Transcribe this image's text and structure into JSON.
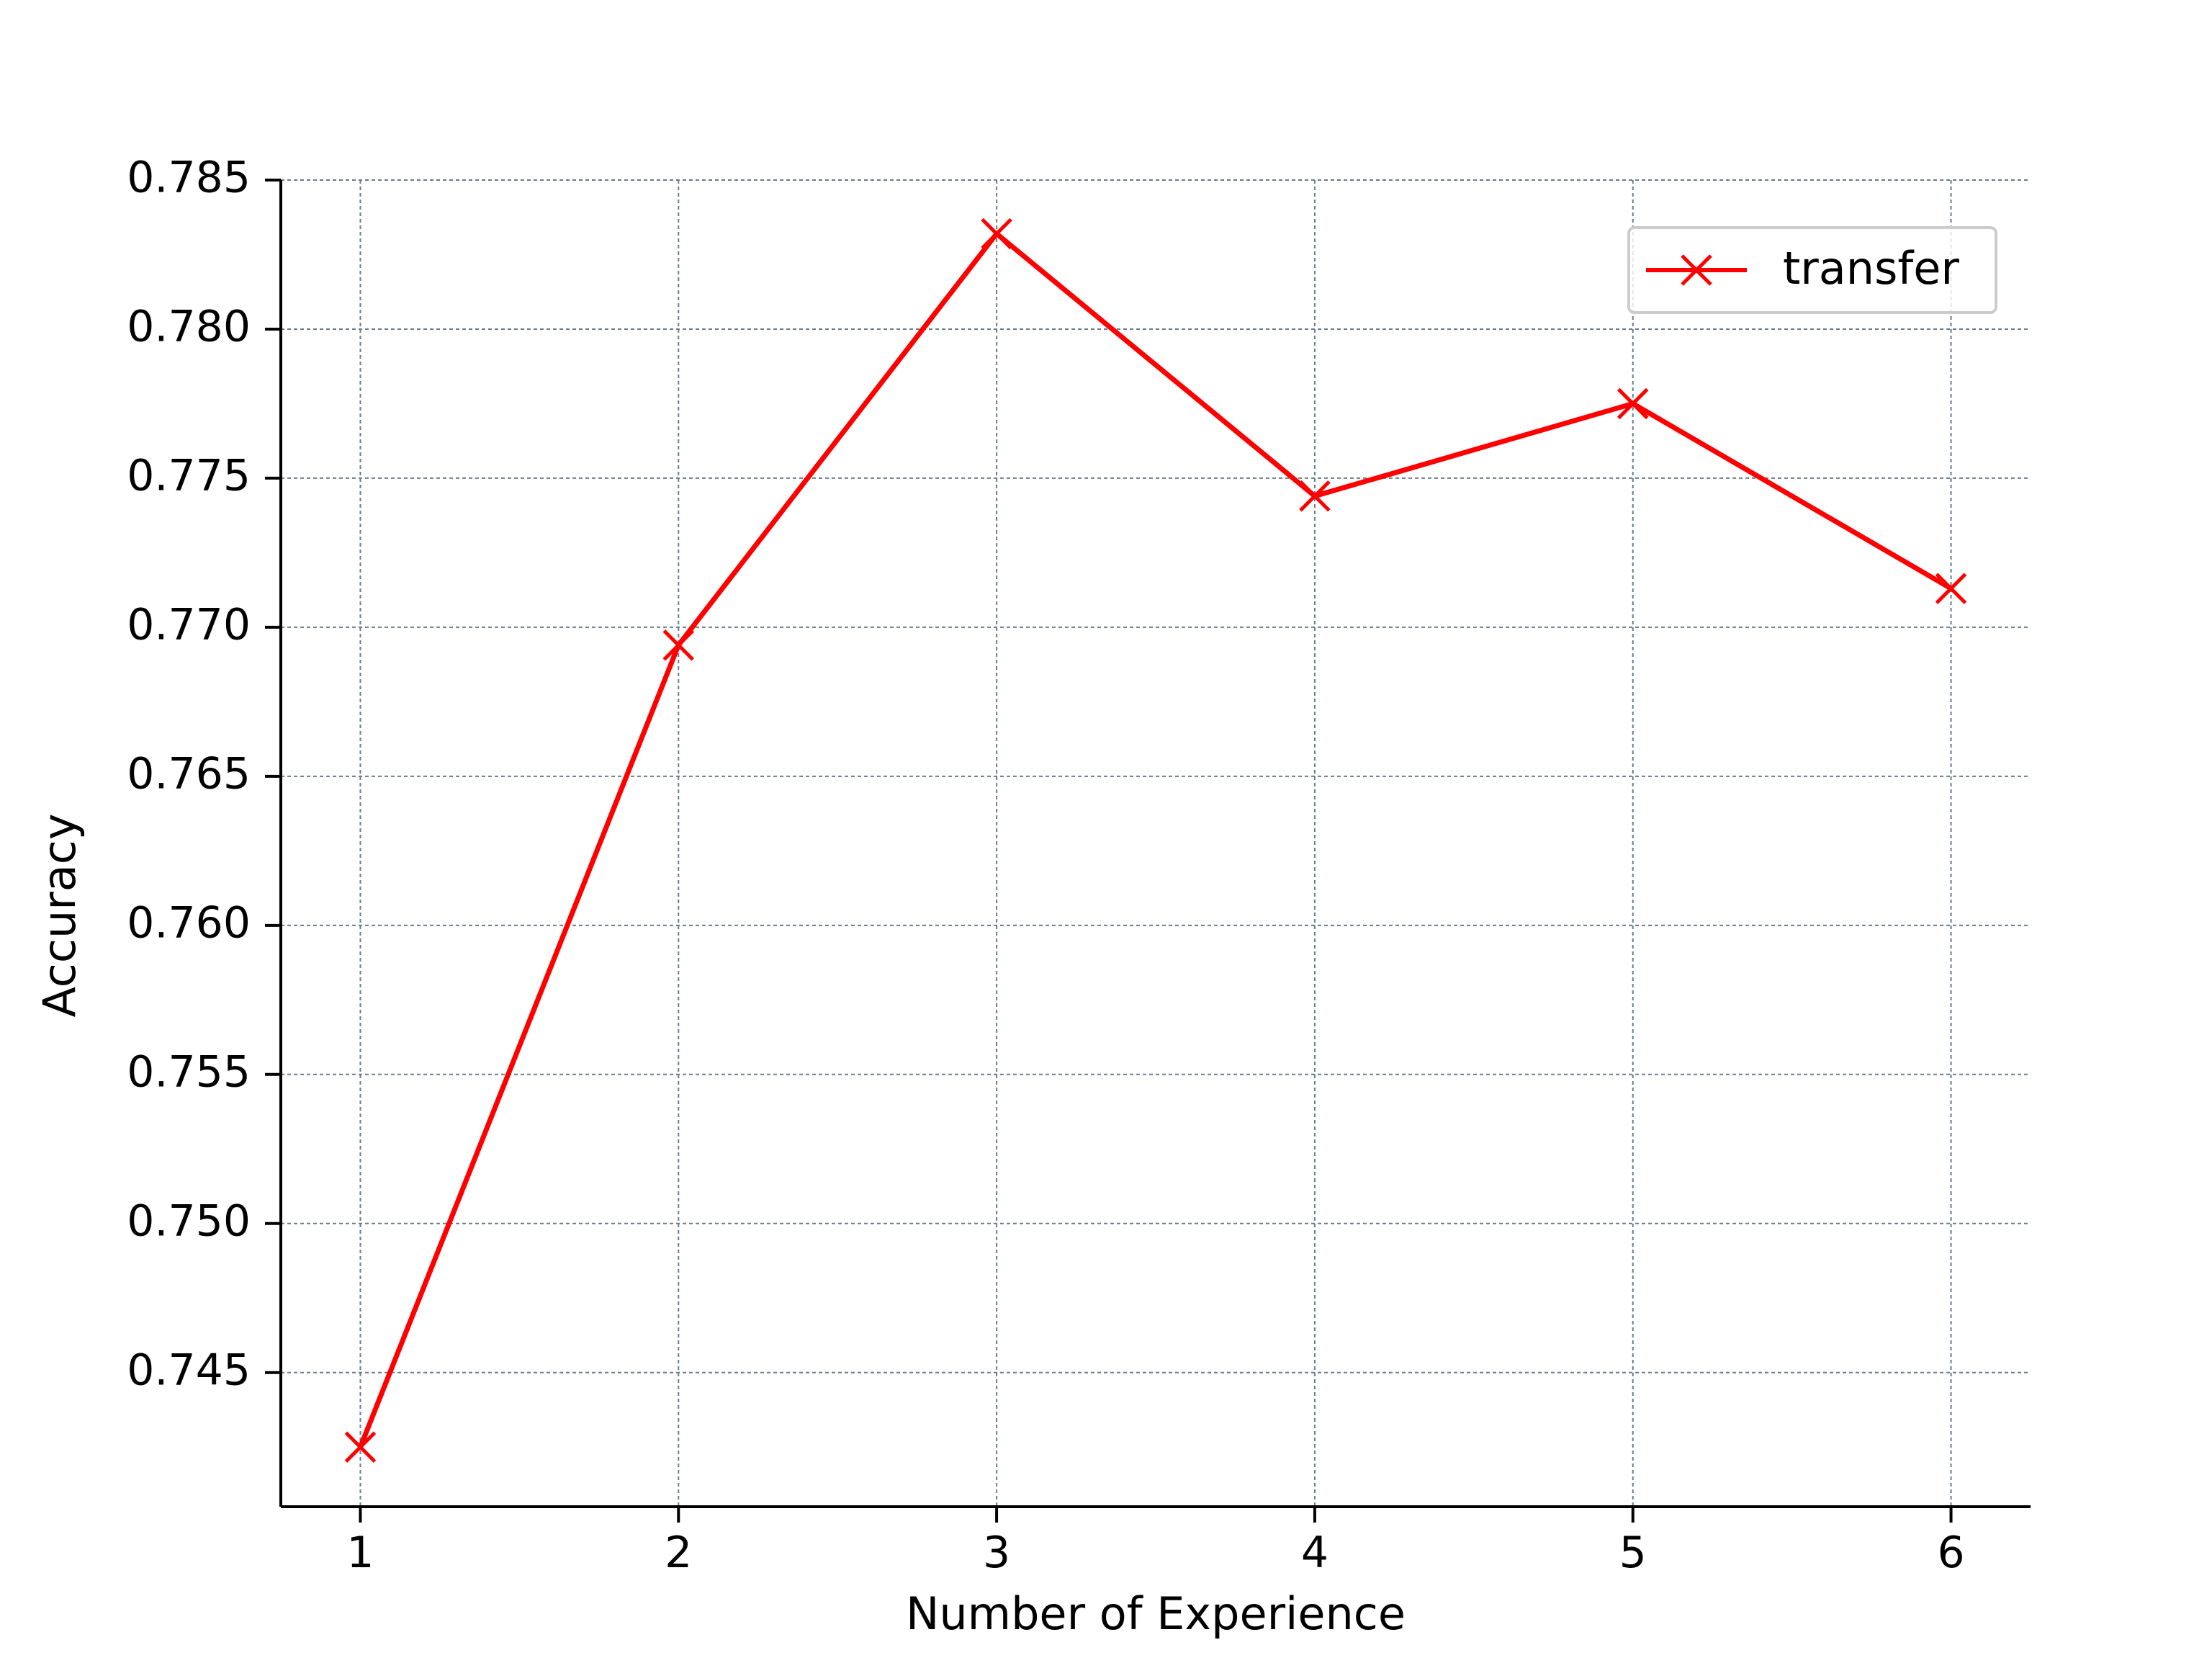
{
  "chart_data": {
    "type": "line",
    "title": "",
    "xlabel": "Number of Experience",
    "ylabel": "Accuracy",
    "x": [
      1,
      2,
      3,
      4,
      5,
      6
    ],
    "xticks": [
      "1",
      "2",
      "3",
      "4",
      "5",
      "6"
    ],
    "xlim": [
      0.75,
      6.25
    ],
    "ylim": [
      0.7405,
      0.785
    ],
    "yticks": [
      0.745,
      0.75,
      0.755,
      0.76,
      0.765,
      0.77,
      0.775,
      0.78,
      0.785
    ],
    "ytick_labels": [
      "0.745",
      "0.750",
      "0.755",
      "0.760",
      "0.765",
      "0.770",
      "0.775",
      "0.780",
      "0.785"
    ],
    "grid": true,
    "legend_position": "top-right",
    "series": [
      {
        "name": "transfer",
        "color": "#ff0000",
        "marker": "x",
        "values": [
          0.7425,
          0.7694,
          0.7832,
          0.7744,
          0.7775,
          0.7713
        ]
      }
    ]
  }
}
